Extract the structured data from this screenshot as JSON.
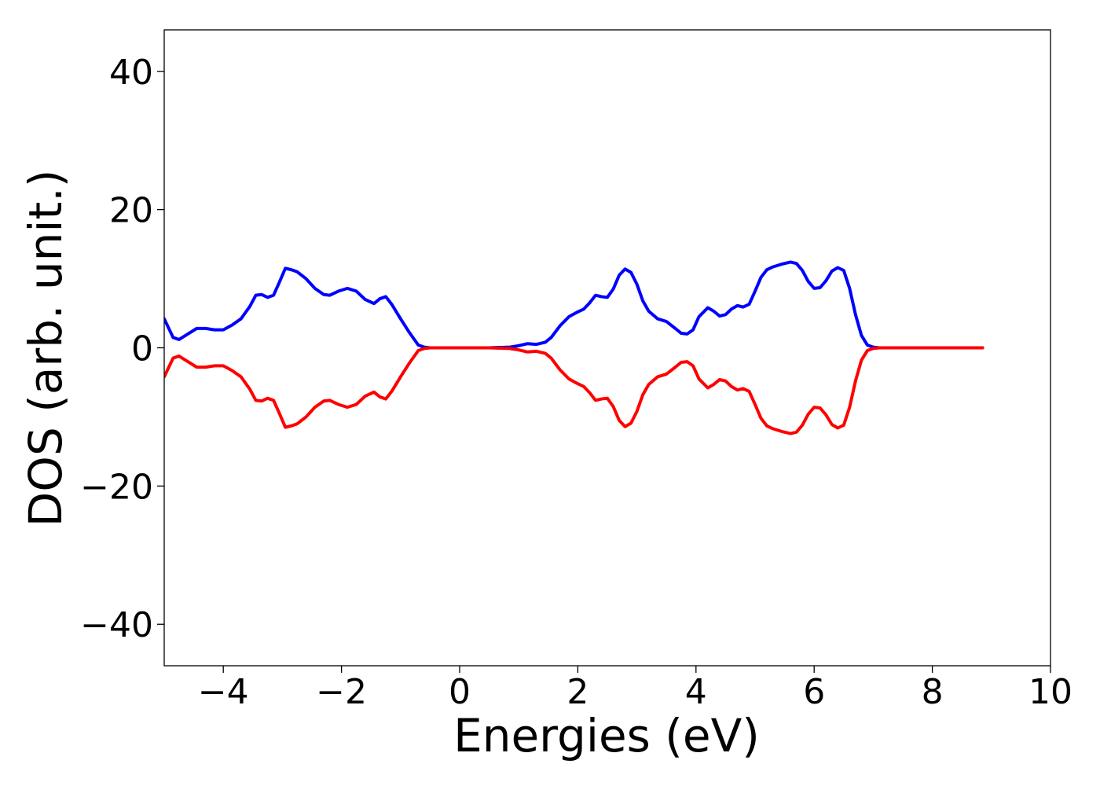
{
  "chart_data": {
    "type": "line",
    "title": "",
    "xlabel": "Energies (eV)",
    "ylabel": "DOS (arb. unit.)",
    "xlim": [
      -5,
      10
    ],
    "ylim": [
      -46,
      46
    ],
    "xticks": [
      -4,
      -2,
      0,
      2,
      4,
      6,
      8,
      10
    ],
    "xtick_labels": [
      "−4",
      "−2",
      "0",
      "2",
      "4",
      "6",
      "8",
      "10"
    ],
    "yticks": [
      40,
      20,
      0,
      -20,
      -40
    ],
    "ytick_labels": [
      "40",
      "20",
      "0",
      "−20",
      "−40"
    ],
    "grid": false,
    "legend": "none",
    "series": [
      {
        "color": "#0000ff",
        "x": [
          -5.0,
          -4.85,
          -4.75,
          -4.6,
          -4.45,
          -4.3,
          -4.15,
          -4.0,
          -3.85,
          -3.7,
          -3.55,
          -3.45,
          -3.35,
          -3.25,
          -3.15,
          -3.05,
          -2.95,
          -2.85,
          -2.75,
          -2.6,
          -2.45,
          -2.3,
          -2.2,
          -2.05,
          -1.9,
          -1.75,
          -1.6,
          -1.45,
          -1.35,
          -1.25,
          -1.15,
          -1.0,
          -0.85,
          -0.7,
          -0.6,
          -0.5,
          0.0,
          0.5,
          0.85,
          1.0,
          1.15,
          1.3,
          1.45,
          1.55,
          1.7,
          1.85,
          2.0,
          2.1,
          2.2,
          2.3,
          2.4,
          2.5,
          2.6,
          2.7,
          2.8,
          2.9,
          3.0,
          3.1,
          3.2,
          3.35,
          3.5,
          3.65,
          3.75,
          3.85,
          3.95,
          4.05,
          4.2,
          4.3,
          4.4,
          4.5,
          4.6,
          4.7,
          4.8,
          4.9,
          5.0,
          5.1,
          5.2,
          5.3,
          5.45,
          5.6,
          5.7,
          5.8,
          5.9,
          6.0,
          6.1,
          6.2,
          6.3,
          6.4,
          6.5,
          6.6,
          6.7,
          6.8,
          6.9,
          7.0,
          7.1,
          7.3,
          8.0,
          8.85
        ],
        "y": [
          4.2,
          1.5,
          1.2,
          2.0,
          2.8,
          2.8,
          2.6,
          2.6,
          3.3,
          4.2,
          6.0,
          7.6,
          7.7,
          7.3,
          7.6,
          9.5,
          11.5,
          11.3,
          11.0,
          10.0,
          8.6,
          7.7,
          7.6,
          8.2,
          8.6,
          8.2,
          7.0,
          6.4,
          7.1,
          7.4,
          6.3,
          4.2,
          2.2,
          0.4,
          0.1,
          0.0,
          0.0,
          0.0,
          0.1,
          0.3,
          0.6,
          0.5,
          0.8,
          1.5,
          3.2,
          4.5,
          5.2,
          5.6,
          6.5,
          7.6,
          7.4,
          7.3,
          8.5,
          10.5,
          11.4,
          10.9,
          9.2,
          6.8,
          5.3,
          4.2,
          3.8,
          2.8,
          2.1,
          2.0,
          2.6,
          4.5,
          5.8,
          5.3,
          4.6,
          4.8,
          5.6,
          6.1,
          5.9,
          6.3,
          8.2,
          10.2,
          11.3,
          11.7,
          12.1,
          12.4,
          12.2,
          11.2,
          9.6,
          8.6,
          8.7,
          9.7,
          11.1,
          11.6,
          11.2,
          8.6,
          4.8,
          1.8,
          0.4,
          0.1,
          0.0,
          0.0,
          0.0,
          0.0
        ]
      },
      {
        "color": "#ff0000",
        "x": [
          -5.0,
          -4.85,
          -4.75,
          -4.6,
          -4.45,
          -4.3,
          -4.15,
          -4.0,
          -3.85,
          -3.7,
          -3.55,
          -3.45,
          -3.35,
          -3.25,
          -3.15,
          -3.05,
          -2.95,
          -2.85,
          -2.75,
          -2.6,
          -2.45,
          -2.3,
          -2.2,
          -2.05,
          -1.9,
          -1.75,
          -1.6,
          -1.45,
          -1.35,
          -1.25,
          -1.15,
          -1.0,
          -0.85,
          -0.7,
          -0.6,
          -0.5,
          0.0,
          0.5,
          0.85,
          1.0,
          1.15,
          1.3,
          1.45,
          1.55,
          1.7,
          1.85,
          2.0,
          2.1,
          2.2,
          2.3,
          2.4,
          2.5,
          2.6,
          2.7,
          2.8,
          2.9,
          3.0,
          3.1,
          3.2,
          3.35,
          3.5,
          3.65,
          3.75,
          3.85,
          3.95,
          4.05,
          4.2,
          4.3,
          4.4,
          4.5,
          4.6,
          4.7,
          4.8,
          4.9,
          5.0,
          5.1,
          5.2,
          5.3,
          5.45,
          5.6,
          5.7,
          5.8,
          5.9,
          6.0,
          6.1,
          6.2,
          6.3,
          6.4,
          6.5,
          6.6,
          6.7,
          6.8,
          6.9,
          7.0,
          7.1,
          7.3,
          8.0,
          8.85
        ],
        "y": [
          -4.2,
          -1.5,
          -1.2,
          -2.0,
          -2.8,
          -2.8,
          -2.6,
          -2.6,
          -3.3,
          -4.2,
          -6.0,
          -7.6,
          -7.7,
          -7.3,
          -7.6,
          -9.5,
          -11.5,
          -11.3,
          -11.0,
          -10.0,
          -8.6,
          -7.7,
          -7.6,
          -8.2,
          -8.6,
          -8.2,
          -7.0,
          -6.4,
          -7.1,
          -7.4,
          -6.3,
          -4.2,
          -2.2,
          -0.4,
          -0.1,
          0.0,
          0.0,
          0.0,
          -0.1,
          -0.3,
          -0.6,
          -0.5,
          -0.8,
          -1.5,
          -3.2,
          -4.5,
          -5.2,
          -5.6,
          -6.5,
          -7.6,
          -7.4,
          -7.3,
          -8.5,
          -10.5,
          -11.4,
          -10.9,
          -9.2,
          -6.8,
          -5.3,
          -4.2,
          -3.8,
          -2.8,
          -2.1,
          -2.0,
          -2.6,
          -4.5,
          -5.8,
          -5.3,
          -4.6,
          -4.8,
          -5.6,
          -6.1,
          -5.9,
          -6.3,
          -8.2,
          -10.2,
          -11.3,
          -11.7,
          -12.1,
          -12.4,
          -12.2,
          -11.2,
          -9.6,
          -8.6,
          -8.7,
          -9.7,
          -11.1,
          -11.6,
          -11.2,
          -8.6,
          -4.8,
          -1.8,
          -0.4,
          -0.1,
          0.0,
          0.0,
          0.0,
          0.0
        ]
      }
    ]
  }
}
